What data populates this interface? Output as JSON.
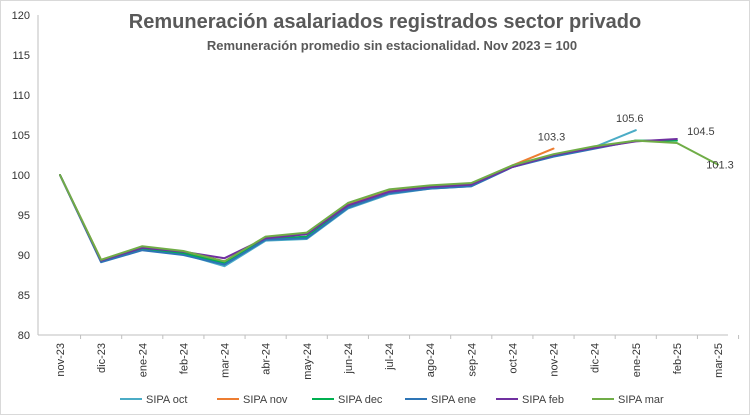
{
  "chart_data": {
    "type": "line",
    "title": "Remuneración asalariados registrados sector privado",
    "subtitle": "Remuneración promedio sin estacionalidad. Nov 2023 = 100",
    "categories": [
      "nov-23",
      "dic-23",
      "ene-24",
      "feb-24",
      "mar-24",
      "abr-24",
      "may-24",
      "jun-24",
      "jul-24",
      "ago-24",
      "sep-24",
      "oct-24",
      "nov-24",
      "dic-24",
      "ene-25",
      "feb-25",
      "mar-25"
    ],
    "ylim": [
      80,
      120
    ],
    "yticks": [
      80,
      85,
      90,
      95,
      100,
      105,
      110,
      115,
      120
    ],
    "grid": false,
    "legend_position": "bottom",
    "series": [
      {
        "name": "SIPA oct",
        "color": "#4bacc6",
        "values": [
          100,
          89.2,
          90.7,
          90.1,
          88.6,
          91.8,
          92.0,
          95.8,
          97.6,
          98.3,
          98.6,
          101.0,
          102.4,
          103.5,
          105.6,
          null,
          null
        ]
      },
      {
        "name": "SIPA nov",
        "color": "#ed7d31",
        "values": [
          100,
          89.4,
          91.0,
          90.4,
          89.2,
          92.2,
          92.7,
          96.4,
          98.0,
          98.6,
          98.9,
          101.2,
          103.3,
          null,
          null,
          null,
          null
        ]
      },
      {
        "name": "SIPA dec",
        "color": "#00b050",
        "values": [
          100,
          89.3,
          90.8,
          90.2,
          89.0,
          92.0,
          92.3,
          96.0,
          97.8,
          98.4,
          98.7,
          101.1,
          102.4,
          103.4,
          104.3,
          104.3,
          null
        ]
      },
      {
        "name": "SIPA ene",
        "color": "#2e75b6",
        "values": [
          100,
          89.1,
          90.6,
          90.0,
          88.8,
          91.9,
          92.1,
          95.9,
          97.7,
          98.3,
          98.6,
          101.0,
          102.3,
          103.3,
          104.3,
          null,
          null
        ]
      },
      {
        "name": "SIPA feb",
        "color": "#7030a0",
        "values": [
          100,
          89.3,
          90.9,
          90.4,
          89.6,
          92.1,
          92.6,
          96.2,
          97.9,
          98.5,
          98.8,
          101.0,
          102.5,
          103.4,
          104.2,
          104.5,
          null
        ]
      },
      {
        "name": "SIPA mar",
        "color": "#70ad47",
        "values": [
          100,
          89.4,
          91.1,
          90.5,
          89.2,
          92.3,
          92.8,
          96.5,
          98.2,
          98.7,
          99.0,
          101.2,
          102.6,
          103.6,
          104.3,
          104.0,
          101.3
        ]
      }
    ],
    "annotations": [
      {
        "text": "103.3",
        "series": "SIPA nov",
        "category": "nov-24",
        "value": 103.3
      },
      {
        "text": "105.6",
        "series": "SIPA oct",
        "category": "ene-25",
        "value": 105.6
      },
      {
        "text": "104.5",
        "series": "SIPA feb",
        "category": "feb-25",
        "value": 104.5
      },
      {
        "text": "101.3",
        "series": "SIPA mar",
        "category": "mar-25",
        "value": 101.3
      }
    ]
  }
}
